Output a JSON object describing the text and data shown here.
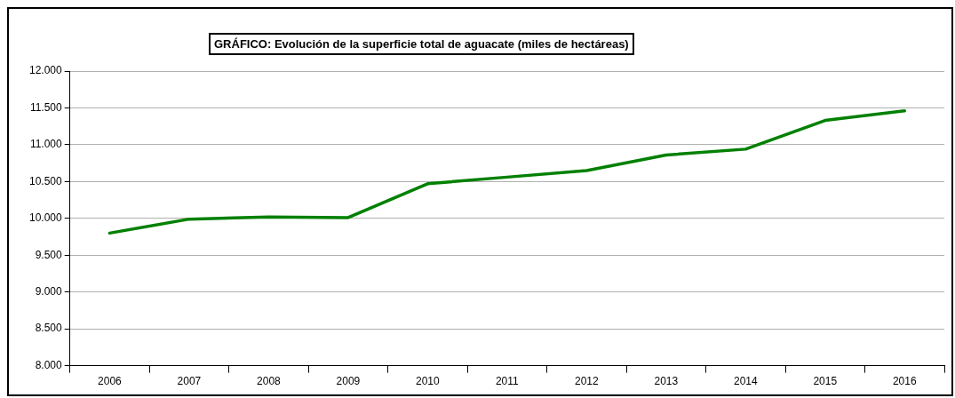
{
  "chart_data": {
    "type": "line",
    "title": "GRÁFICO: Evolución de la superficie total de aguacate (miles de hectáreas)",
    "categories": [
      "2006",
      "2007",
      "2008",
      "2009",
      "2010",
      "2011",
      "2012",
      "2013",
      "2014",
      "2015",
      "2016"
    ],
    "series": [
      {
        "color": "#008000",
        "values": [
          9800,
          9990,
          10020,
          10010,
          10470,
          10560,
          10650,
          10860,
          10940,
          11330,
          11460
        ]
      }
    ],
    "ylim": [
      8000,
      12000
    ],
    "yticks": [
      {
        "value": 8000,
        "label": "8.000"
      },
      {
        "value": 8500,
        "label": "8.500"
      },
      {
        "value": 9000,
        "label": "9.000"
      },
      {
        "value": 9500,
        "label": "9.500"
      },
      {
        "value": 10000,
        "label": "10.000"
      },
      {
        "value": 10500,
        "label": "10.500"
      },
      {
        "value": 11000,
        "label": "11.000"
      },
      {
        "value": 11500,
        "label": "11.500"
      },
      {
        "value": 12000,
        "label": "12.000"
      }
    ],
    "grid": "y",
    "legend": false,
    "marker": "none",
    "line_style": "solid"
  }
}
